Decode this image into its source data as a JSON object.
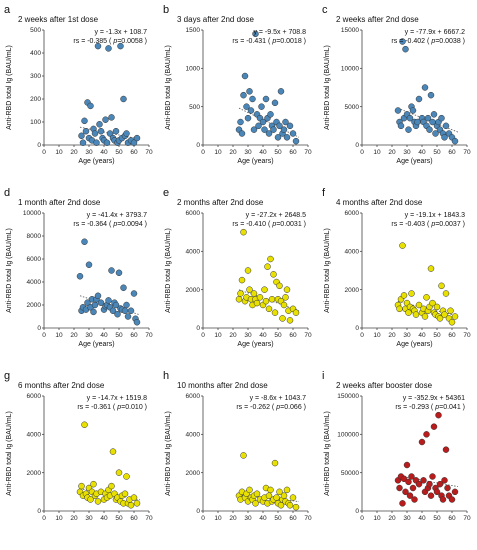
{
  "chart_data": [
    {
      "type": "scatter",
      "panel": "a",
      "title": "2 weeks after 1st dose",
      "xlabel": "Age (years)",
      "ylabel": "Anti-RBD total Ig (BAU/mL)",
      "xlim": [
        0,
        70
      ],
      "ylim": [
        0,
        500
      ],
      "xticks": [
        0,
        10,
        20,
        30,
        40,
        50,
        60,
        70
      ],
      "yticks": [
        0,
        100,
        200,
        300,
        400,
        500
      ],
      "equation": "y = -1.3x + 108.7",
      "rs_text": "rs = -0.385 ( ",
      "p_text": "p",
      "rs_tail": "=0.0058 )",
      "rs_color": "#e02020",
      "point_color": "#4a86b8",
      "trend": [
        [
          24,
          77.5
        ],
        [
          64,
          25.5
        ]
      ],
      "x": [
        25,
        26,
        27,
        28,
        29,
        30,
        31,
        32,
        33,
        34,
        35,
        36,
        37,
        38,
        39,
        40,
        41,
        42,
        43,
        44,
        45,
        46,
        47,
        48,
        49,
        50,
        51,
        52,
        53,
        54,
        55,
        56,
        58,
        60,
        62
      ],
      "y": [
        40,
        10,
        105,
        60,
        185,
        30,
        170,
        20,
        70,
        50,
        10,
        430,
        90,
        60,
        30,
        20,
        110,
        10,
        420,
        50,
        120,
        30,
        20,
        60,
        10,
        20,
        430,
        30,
        200,
        40,
        50,
        10,
        20,
        10,
        30
      ]
    },
    {
      "type": "scatter",
      "panel": "b",
      "title": "3 days after 2nd dose",
      "xlabel": "Age (years)",
      "ylabel": "Anti-RBD total Ig (BAU/mL)",
      "xlim": [
        0,
        70
      ],
      "ylim": [
        0,
        1500
      ],
      "xticks": [
        0,
        10,
        20,
        30,
        40,
        50,
        60,
        70
      ],
      "yticks": [
        0,
        500,
        1000,
        1500
      ],
      "equation": "y = -9.5x + 708.8",
      "rs_text": "rs = -0.431 ( ",
      "p_text": "p",
      "rs_tail": "=0.0018 )",
      "rs_color": "#e02020",
      "point_color": "#4a86b8",
      "trend": [
        [
          24,
          480.8
        ],
        [
          64,
          100.8
        ]
      ],
      "x": [
        24,
        25,
        26,
        27,
        28,
        29,
        30,
        31,
        32,
        33,
        34,
        35,
        36,
        37,
        38,
        39,
        40,
        41,
        42,
        43,
        44,
        45,
        46,
        47,
        48,
        49,
        50,
        51,
        52,
        53,
        54,
        55,
        56,
        58,
        60,
        62
      ],
      "y": [
        200,
        300,
        150,
        650,
        900,
        500,
        350,
        700,
        450,
        600,
        200,
        1450,
        400,
        250,
        350,
        500,
        300,
        200,
        600,
        350,
        150,
        400,
        250,
        200,
        550,
        300,
        100,
        250,
        700,
        150,
        200,
        300,
        100,
        250,
        150,
        50
      ]
    },
    {
      "type": "scatter",
      "panel": "c",
      "title": "2 weeks after 2nd dose",
      "xlabel": "Age (years)",
      "ylabel": "Anti-RBD total Ig (BAU/mL)",
      "xlim": [
        0,
        70
      ],
      "ylim": [
        0,
        15000
      ],
      "xticks": [
        0,
        10,
        20,
        30,
        40,
        50,
        60,
        70
      ],
      "yticks": [
        0,
        5000,
        10000,
        15000
      ],
      "equation": "y = -77.9x + 6667.2",
      "rs_text": "rs = -0.402 ( ",
      "p_text": "p",
      "rs_tail": "=0.0038 )",
      "rs_color": "#e02020",
      "point_color": "#4a86b8",
      "trend": [
        [
          24,
          4797.6
        ],
        [
          64,
          1681.6
        ]
      ],
      "x": [
        24,
        25,
        26,
        27,
        28,
        29,
        30,
        31,
        32,
        33,
        34,
        35,
        36,
        37,
        38,
        40,
        41,
        42,
        43,
        44,
        45,
        46,
        47,
        48,
        49,
        50,
        51,
        52,
        53,
        54,
        55,
        56,
        58,
        60,
        62
      ],
      "y": [
        4500,
        3000,
        2500,
        13500,
        3500,
        12500,
        4000,
        2000,
        3500,
        5000,
        4500,
        3000,
        2500,
        3000,
        6000,
        3500,
        3000,
        7500,
        2500,
        3500,
        2000,
        6500,
        3000,
        4000,
        1500,
        2500,
        3000,
        2000,
        3500,
        1500,
        1000,
        2500,
        1500,
        1000,
        500
      ]
    },
    {
      "type": "scatter",
      "panel": "d",
      "title": "1 month after 2nd dose",
      "xlabel": "Age (years)",
      "ylabel": "Anti-RBD total Ig (BAU/mL)",
      "xlim": [
        0,
        70
      ],
      "ylim": [
        0,
        10000
      ],
      "xticks": [
        0,
        10,
        20,
        30,
        40,
        50,
        60,
        70
      ],
      "yticks": [
        0,
        2000,
        4000,
        6000,
        8000,
        10000
      ],
      "equation": "y = -41.4x + 3793.7",
      "rs_text": "rs = -0.364 ( ",
      "p_text": "p",
      "rs_tail": "=0.0094 )",
      "rs_color": "#e02020",
      "point_color": "#4a86b8",
      "trend": [
        [
          24,
          2800.1
        ],
        [
          64,
          1144.1
        ]
      ],
      "x": [
        24,
        25,
        26,
        27,
        28,
        29,
        30,
        31,
        32,
        33,
        34,
        35,
        36,
        38,
        40,
        41,
        42,
        43,
        44,
        45,
        46,
        47,
        48,
        49,
        50,
        51,
        52,
        53,
        54,
        55,
        56,
        58,
        60,
        61,
        62
      ],
      "y": [
        4500,
        1500,
        1800,
        7500,
        1600,
        2200,
        5500,
        1800,
        2500,
        1400,
        2000,
        2500,
        2800,
        2200,
        1600,
        1900,
        2000,
        2400,
        1800,
        5000,
        1500,
        2200,
        2000,
        1200,
        4800,
        1700,
        1600,
        3500,
        1500,
        2000,
        1000,
        1500,
        3000,
        800,
        500
      ]
    },
    {
      "type": "scatter",
      "panel": "e",
      "title": "2 months after 2nd dose",
      "xlabel": "Age (years)",
      "ylabel": "Anti-RBD total Ig (BAU/mL)",
      "xlim": [
        0,
        70
      ],
      "ylim": [
        0,
        6000
      ],
      "xticks": [
        0,
        10,
        20,
        30,
        40,
        50,
        60,
        70
      ],
      "yticks": [
        0,
        2000,
        4000,
        6000
      ],
      "equation": "y = -27.2x + 2648.5",
      "rs_text": "rs = -0.410 ( ",
      "p_text": "p",
      "rs_tail": "=0.0031 )",
      "rs_color": "#e02020",
      "point_color": "#e8e000",
      "trend": [
        [
          24,
          1995.7
        ],
        [
          64,
          907.7
        ]
      ],
      "x": [
        24,
        25,
        26,
        27,
        28,
        29,
        30,
        31,
        32,
        33,
        34,
        35,
        36,
        38,
        40,
        41,
        42,
        43,
        44,
        45,
        46,
        47,
        48,
        49,
        50,
        51,
        52,
        53,
        54,
        55,
        56,
        57,
        58,
        60,
        62
      ],
      "y": [
        1500,
        1800,
        2500,
        5000,
        1400,
        1600,
        3000,
        2000,
        1500,
        1200,
        1800,
        1500,
        1300,
        1600,
        1200,
        2000,
        1400,
        3200,
        1000,
        3600,
        1500,
        2800,
        800,
        2400,
        1500,
        2200,
        1400,
        500,
        1200,
        1600,
        2000,
        900,
        400,
        1000,
        800
      ]
    },
    {
      "type": "scatter",
      "panel": "f",
      "title": "4 months after 2nd dose",
      "xlabel": "Age (years)",
      "ylabel": "Anti-RBD total Ig (BAU/mL)",
      "xlim": [
        0,
        70
      ],
      "ylim": [
        0,
        6000
      ],
      "xticks": [
        0,
        10,
        20,
        30,
        40,
        50,
        60,
        70
      ],
      "yticks": [
        0,
        2000,
        4000,
        6000
      ],
      "equation": "y = -19.1x + 1843.3",
      "rs_text": "rs = -0.403 ( ",
      "p_text": "p",
      "rs_tail": "=0.0037 )",
      "rs_color": "#e02020",
      "point_color": "#e8e000",
      "trend": [
        [
          24,
          1384.9
        ],
        [
          64,
          620.9
        ]
      ],
      "x": [
        24,
        25,
        26,
        27,
        28,
        29,
        30,
        31,
        32,
        33,
        34,
        35,
        36,
        38,
        40,
        41,
        42,
        43,
        44,
        45,
        46,
        47,
        48,
        49,
        50,
        51,
        52,
        53,
        54,
        55,
        56,
        58,
        59,
        60,
        62
      ],
      "y": [
        1200,
        1000,
        1500,
        4300,
        1700,
        1000,
        1300,
        800,
        1100,
        1800,
        1000,
        900,
        700,
        1200,
        800,
        1000,
        600,
        1600,
        900,
        1100,
        3100,
        1300,
        800,
        700,
        1100,
        600,
        500,
        2200,
        900,
        700,
        1800,
        500,
        900,
        300,
        600
      ]
    },
    {
      "type": "scatter",
      "panel": "g",
      "title": "6 months after 2nd dose",
      "xlabel": "",
      "ylabel": "Anti-RBD total Ig (BAU/mL)",
      "xlim": [
        0,
        70
      ],
      "ylim": [
        0,
        6000
      ],
      "xticks": [
        0,
        10,
        20,
        30,
        40,
        50,
        60,
        70
      ],
      "yticks": [
        0,
        2000,
        4000,
        6000
      ],
      "equation": "y = -14.7x + 1519.8",
      "rs_text": "rs = -0.361 ( ",
      "p_text": "p",
      "rs_tail": "=0.010 )",
      "rs_color": "#111111",
      "point_color": "#e8e000",
      "trend": [
        [
          24,
          1167
        ],
        [
          64,
          579
        ]
      ],
      "x": [
        24,
        25,
        26,
        27,
        28,
        29,
        30,
        31,
        32,
        33,
        34,
        35,
        36,
        38,
        40,
        41,
        42,
        43,
        44,
        45,
        46,
        47,
        48,
        49,
        50,
        51,
        52,
        53,
        54,
        55,
        56,
        57,
        58,
        60,
        62
      ],
      "y": [
        1000,
        1300,
        800,
        4500,
        900,
        700,
        1200,
        600,
        1000,
        1400,
        800,
        900,
        500,
        1000,
        600,
        900,
        700,
        1100,
        800,
        1300,
        3100,
        900,
        600,
        700,
        2000,
        500,
        800,
        400,
        900,
        1800,
        400,
        600,
        300,
        700,
        400
      ]
    },
    {
      "type": "scatter",
      "panel": "h",
      "title": "10 months after 2nd dose",
      "xlabel": "",
      "ylabel": "Anti-RBD total Ig (BAU/mL)",
      "xlim": [
        0,
        70
      ],
      "ylim": [
        0,
        6000
      ],
      "xticks": [
        0,
        10,
        20,
        30,
        40,
        50,
        60,
        70
      ],
      "yticks": [
        0,
        2000,
        4000,
        6000
      ],
      "equation": "y = -8.6x + 1043.7",
      "rs_text": "rs = -0.262 ( ",
      "p_text": "p",
      "rs_tail": "=0.066 )",
      "rs_color": "#111111",
      "point_color": "#e8e000",
      "trend": [
        [
          24,
          837.3
        ],
        [
          64,
          493.3
        ]
      ],
      "x": [
        24,
        25,
        26,
        27,
        28,
        29,
        30,
        31,
        32,
        33,
        34,
        35,
        36,
        38,
        40,
        41,
        42,
        43,
        44,
        45,
        46,
        47,
        48,
        49,
        50,
        51,
        52,
        53,
        54,
        55,
        56,
        57,
        58,
        60,
        62
      ],
      "y": [
        800,
        600,
        1000,
        2900,
        700,
        900,
        500,
        1100,
        700,
        600,
        800,
        400,
        900,
        600,
        500,
        700,
        1200,
        400,
        800,
        1100,
        500,
        600,
        2500,
        700,
        400,
        1000,
        300,
        600,
        800,
        500,
        1100,
        400,
        300,
        700,
        200
      ]
    },
    {
      "type": "scatter",
      "panel": "i",
      "title": "2 weeks after booster dose",
      "xlabel": "",
      "ylabel": "Anti-RBD total Ig (BAU/mL)",
      "xlim": [
        0,
        70
      ],
      "ylim": [
        0,
        150000
      ],
      "xticks": [
        0,
        10,
        20,
        30,
        40,
        50,
        60,
        70
      ],
      "yticks": [
        0,
        50000,
        100000,
        150000
      ],
      "equation": "y = -352.9x + 54361",
      "rs_text": "rs = -0.293 ( ",
      "p_text": "p",
      "rs_tail": "=0.041 )",
      "rs_color": "#111111",
      "point_color": "#b81c1c",
      "trend": [
        [
          24,
          45891
        ],
        [
          64,
          31775
        ]
      ],
      "x": [
        24,
        25,
        26,
        27,
        28,
        29,
        30,
        31,
        32,
        33,
        34,
        35,
        36,
        38,
        40,
        41,
        42,
        43,
        44,
        45,
        46,
        47,
        48,
        49,
        50,
        51,
        52,
        53,
        54,
        55,
        56,
        57,
        58,
        60,
        62
      ],
      "y": [
        40000,
        30000,
        45000,
        10000,
        42000,
        25000,
        60000,
        38000,
        20000,
        45000,
        30000,
        15000,
        40000,
        35000,
        90000,
        40000,
        25000,
        100000,
        30000,
        35000,
        20000,
        45000,
        110000,
        30000,
        25000,
        125000,
        35000,
        20000,
        15000,
        40000,
        80000,
        30000,
        20000,
        15000,
        25000
      ]
    }
  ]
}
